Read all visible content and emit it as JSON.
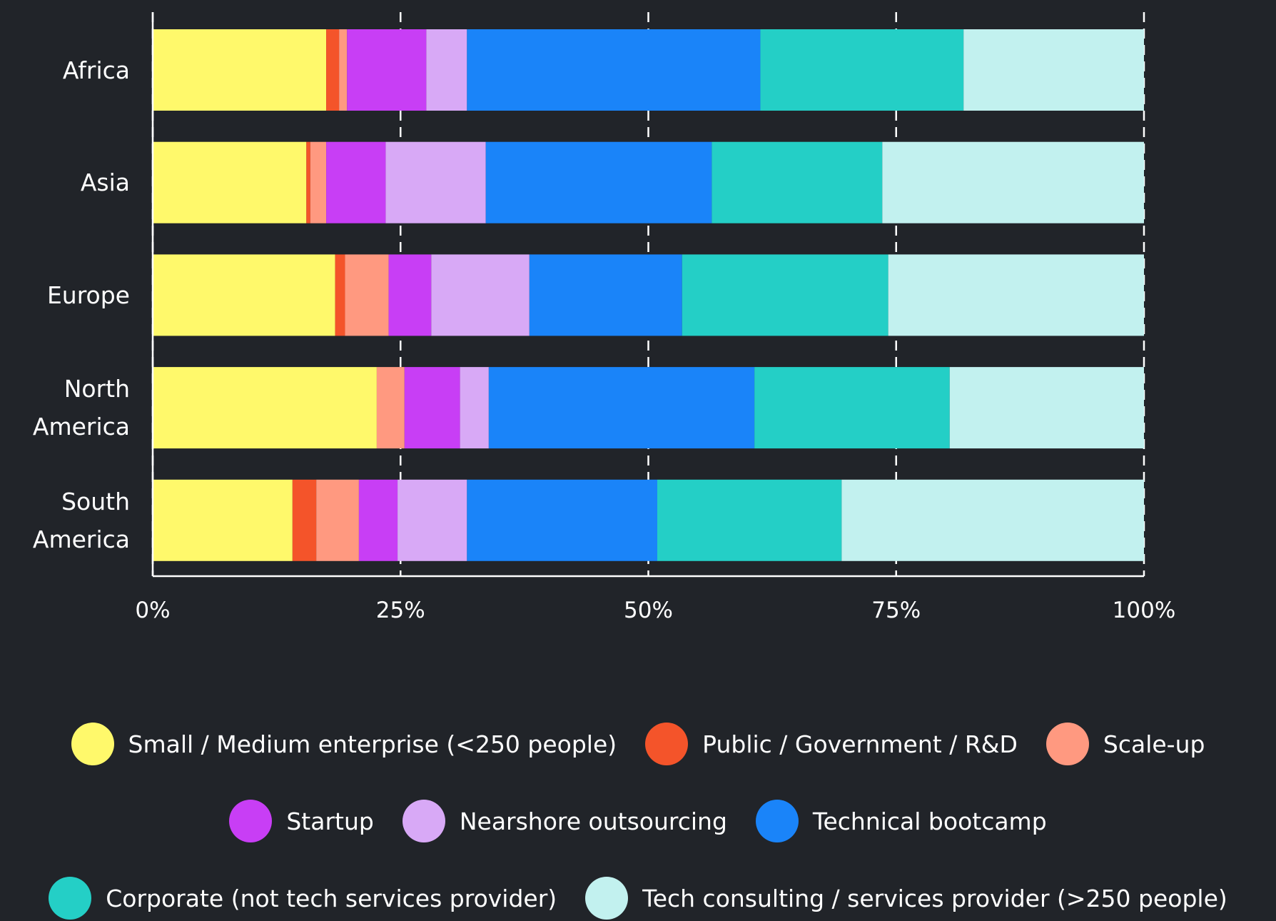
{
  "chart_data": {
    "type": "stacked-barh",
    "categories": [
      "Africa",
      "Asia",
      "Europe",
      "North America",
      "South America"
    ],
    "series": [
      {
        "name": "Small / Medium enterprise (<250 people)",
        "color": "#fff96b",
        "values": [
          17.5,
          15.5,
          18.4,
          22.6,
          14.1
        ]
      },
      {
        "name": "Public / Government / R&D",
        "color": "#f4542a",
        "values": [
          1.3,
          0.4,
          1.0,
          0,
          2.4
        ]
      },
      {
        "name": "Scale-up",
        "color": "#ff9980",
        "values": [
          0.8,
          1.6,
          4.4,
          2.8,
          4.3
        ]
      },
      {
        "name": "Startup",
        "color": "#c83ef5",
        "values": [
          8.0,
          6.0,
          4.3,
          5.6,
          3.9
        ]
      },
      {
        "name": "Nearshore outsourcing",
        "color": "#d8a9f6",
        "values": [
          4.1,
          10.1,
          9.9,
          2.9,
          7.0
        ]
      },
      {
        "name": "Technical bootcamp",
        "color": "#1a84f9",
        "values": [
          29.6,
          22.8,
          15.4,
          26.8,
          19.2
        ]
      },
      {
        "name": "Corporate (not tech services provider)",
        "color": "#24cfc6",
        "values": [
          20.5,
          17.2,
          20.8,
          19.7,
          18.6
        ]
      },
      {
        "name": "Tech consulting / services provider (>250 people)",
        "color": "#c2f1ef",
        "values": [
          18.2,
          26.4,
          25.8,
          19.6,
          30.5
        ]
      }
    ],
    "xlim": [
      0,
      100
    ],
    "xticks": [
      {
        "value": 0,
        "label": "0%"
      },
      {
        "value": 25,
        "label": "25%"
      },
      {
        "value": 50,
        "label": "50%"
      },
      {
        "value": 75,
        "label": "75%"
      },
      {
        "value": 100,
        "label": "100%"
      }
    ],
    "grid": true
  }
}
